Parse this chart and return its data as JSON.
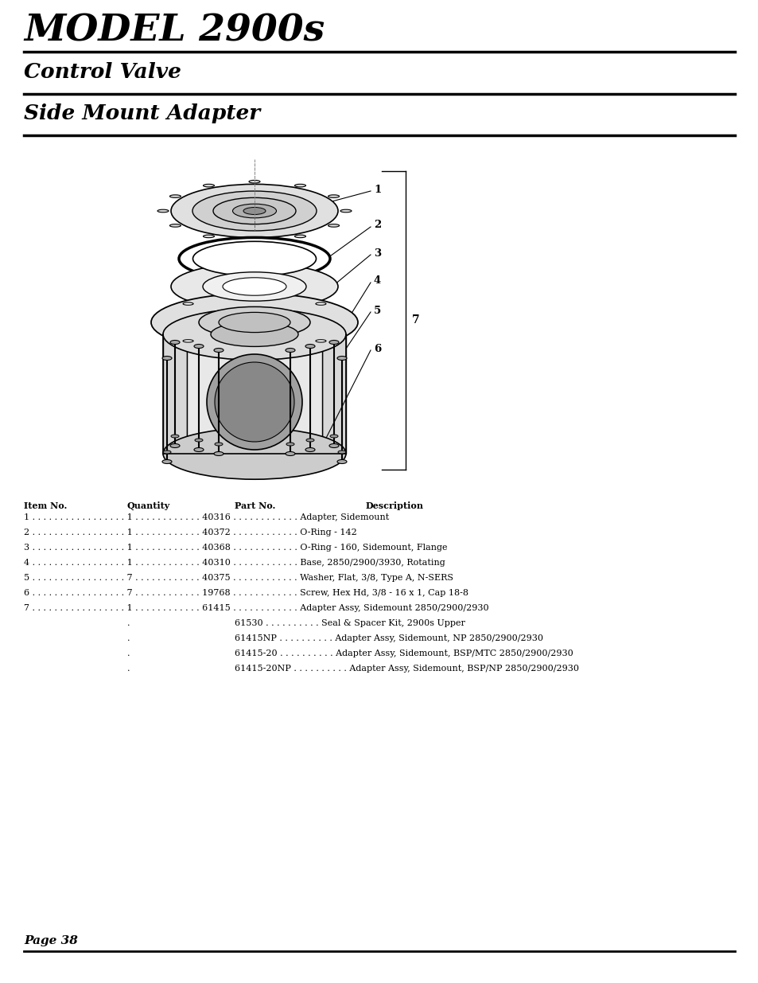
{
  "title": "MODEL 2900s",
  "subtitle1": "Control Valve",
  "subtitle2": "Side Mount Adapter",
  "page": "Page 38",
  "bg_color": "#ffffff",
  "text_color": "#000000",
  "table_headers": [
    "Item No.",
    "Quantity",
    "Part No.",
    "Description"
  ],
  "table_rows_col": [
    [
      "1",
      "1",
      "40316",
      "Adapter, Sidemount"
    ],
    [
      "2",
      "1",
      "40372",
      "O-Ring - 142"
    ],
    [
      "3",
      "1",
      "40368",
      "O-Ring - 160, Sidemount, Flange"
    ],
    [
      "4",
      "1",
      "40310",
      "Base, 2850/2900/3930, Rotating"
    ],
    [
      "5",
      "7",
      "40375",
      "Washer, Flat, 3/8, Type A, N-SERS"
    ],
    [
      "6",
      "7",
      "19768",
      "Screw, Hex Hd, 3/8 - 16 x 1, Cap 18-8"
    ],
    [
      "7",
      "1",
      "61415",
      "Adapter Assy, Sidemount 2850/2900/2930"
    ]
  ],
  "extra_rows": [
    [
      ".",
      "61530",
      "Seal & Spacer Kit, 2900s Upper"
    ],
    [
      ".",
      "61415NP",
      "Adapter Assy, Sidemount, NP 2850/2900/2930"
    ],
    [
      ".",
      "61415-20",
      "Adapter Assy, Sidemount, BSP/MTC 2850/2900/2930"
    ],
    [
      ".",
      "61415-20NP",
      "Adapter Assy, Sidemount, BSP/NP 2850/2900/2930"
    ]
  ]
}
